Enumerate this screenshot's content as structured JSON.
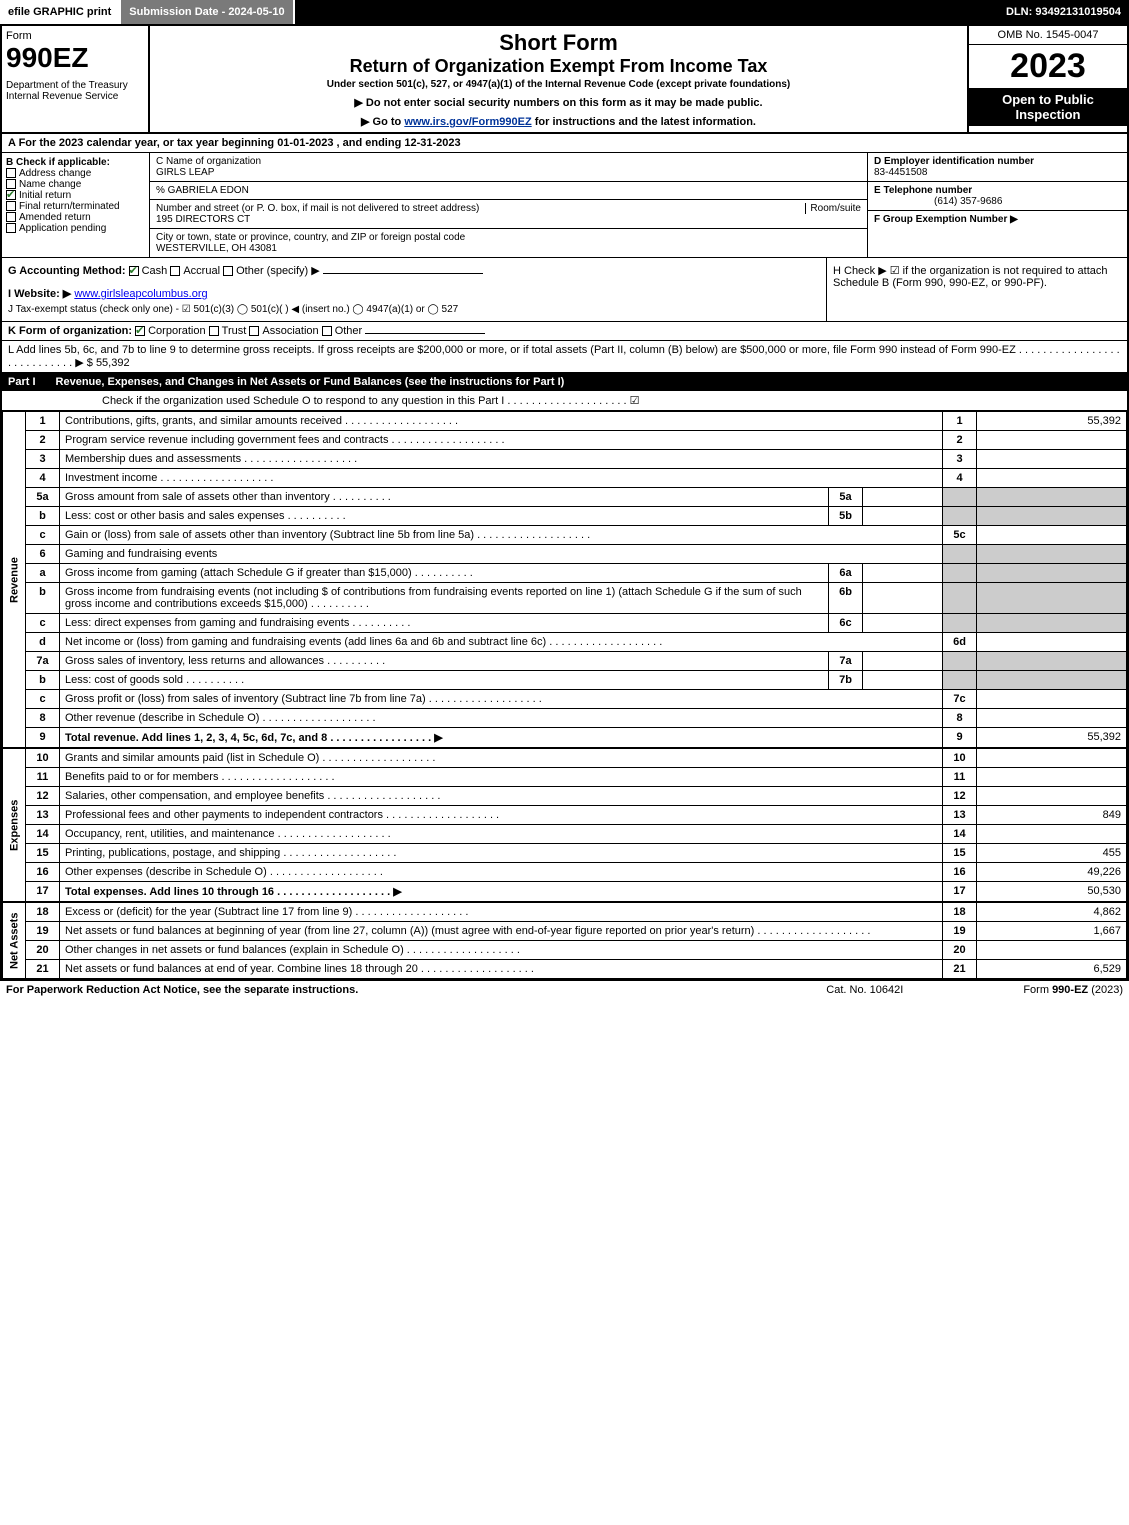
{
  "top": {
    "efile": "efile GRAPHIC print",
    "sub_date_label": "Submission Date - 2024-05-10",
    "dln": "DLN: 93492131019504"
  },
  "hdr": {
    "form": "Form",
    "num": "990EZ",
    "dept1": "Department of the Treasury",
    "dept2": "Internal Revenue Service",
    "title1": "Short Form",
    "title2": "Return of Organization Exempt From Income Tax",
    "sub": "Under section 501(c), 527, or 4947(a)(1) of the Internal Revenue Code (except private foundations)",
    "instr1": "▶ Do not enter social security numbers on this form as it may be made public.",
    "instr2_pre": "▶ Go to ",
    "instr2_link": "www.irs.gov/Form990EZ",
    "instr2_post": " for instructions and the latest information.",
    "omb": "OMB No. 1545-0047",
    "year": "2023",
    "open": "Open to Public Inspection"
  },
  "A": "A  For the 2023 calendar year, or tax year beginning 01-01-2023 , and ending 12-31-2023",
  "B": {
    "hdr": "B  Check if applicable:",
    "items": [
      "Address change",
      "Name change",
      "Initial return",
      "Final return/terminated",
      "Amended return",
      "Application pending"
    ],
    "checked_idx": 2
  },
  "C": {
    "name_lbl": "C Name of organization",
    "name": "GIRLS LEAP",
    "care": "% GABRIELA EDON",
    "street_lbl": "Number and street (or P. O. box, if mail is not delivered to street address)",
    "room_lbl": "Room/suite",
    "street": "195 DIRECTORS CT",
    "city_lbl": "City or town, state or province, country, and ZIP or foreign postal code",
    "city": "WESTERVILLE, OH  43081"
  },
  "D": {
    "lbl": "D Employer identification number",
    "val": "83-4451508"
  },
  "E": {
    "lbl": "E Telephone number",
    "val": "(614) 357-9686"
  },
  "F": {
    "lbl": "F Group Exemption Number   ▶"
  },
  "G": {
    "lbl": "G Accounting Method:",
    "opts": [
      "Cash",
      "Accrual",
      "Other (specify) ▶"
    ],
    "checked_idx": 0
  },
  "H": "H   Check ▶  ☑  if the organization is not required to attach Schedule B (Form 990, 990-EZ, or 990-PF).",
  "I": {
    "lbl": "I Website: ▶",
    "val": "www.girlsleapcolumbus.org"
  },
  "J": "J Tax-exempt status (check only one) -  ☑ 501(c)(3)  ◯ 501(c)(  ) ◀ (insert no.)  ◯ 4947(a)(1) or  ◯ 527",
  "K": {
    "lbl": "K Form of organization:",
    "opts": [
      "Corporation",
      "Trust",
      "Association",
      "Other"
    ],
    "checked_idx": 0
  },
  "L": {
    "text": "L Add lines 5b, 6c, and 7b to line 9 to determine gross receipts. If gross receipts are $200,000 or more, or if total assets (Part II, column (B) below) are $500,000 or more, file Form 990 instead of Form 990-EZ  . . . . . . . . . . . . . . . . . . . . . . . . . . . . ▶ $ ",
    "amt": "55,392"
  },
  "part1": {
    "title": "Part I",
    "desc": "Revenue, Expenses, and Changes in Net Assets or Fund Balances (see the instructions for Part I)",
    "check_line": "Check if the organization used Schedule O to respond to any question in this Part I . . . . . . . . . . . . . . . . . . . . ☑"
  },
  "sections": {
    "revenue": "Revenue",
    "expenses": "Expenses",
    "netassets": "Net Assets"
  },
  "rows": [
    {
      "n": "1",
      "d": "Contributions, gifts, grants, and similar amounts received",
      "r": "1",
      "a": "55,392"
    },
    {
      "n": "2",
      "d": "Program service revenue including government fees and contracts",
      "r": "2",
      "a": ""
    },
    {
      "n": "3",
      "d": "Membership dues and assessments",
      "r": "3",
      "a": ""
    },
    {
      "n": "4",
      "d": "Investment income",
      "r": "4",
      "a": ""
    },
    {
      "n": "5a",
      "d": "Gross amount from sale of assets other than inventory",
      "sn": "5a",
      "sa": "",
      "shade": true
    },
    {
      "n": "b",
      "d": "Less: cost or other basis and sales expenses",
      "sn": "5b",
      "sa": "",
      "shade": true
    },
    {
      "n": "c",
      "d": "Gain or (loss) from sale of assets other than inventory (Subtract line 5b from line 5a)",
      "r": "5c",
      "a": ""
    },
    {
      "n": "6",
      "d": "Gaming and fundraising events",
      "shade": true,
      "noright": true
    },
    {
      "n": "a",
      "d": "Gross income from gaming (attach Schedule G if greater than $15,000)",
      "sn": "6a",
      "sa": "",
      "shade": true
    },
    {
      "n": "b",
      "d": "Gross income from fundraising events (not including $                           of contributions from fundraising events reported on line 1) (attach Schedule G if the sum of such gross income and contributions exceeds $15,000)",
      "sn": "6b",
      "sa": "",
      "shade": true
    },
    {
      "n": "c",
      "d": "Less: direct expenses from gaming and fundraising events",
      "sn": "6c",
      "sa": "",
      "shade": true
    },
    {
      "n": "d",
      "d": "Net income or (loss) from gaming and fundraising events (add lines 6a and 6b and subtract line 6c)",
      "r": "6d",
      "a": ""
    },
    {
      "n": "7a",
      "d": "Gross sales of inventory, less returns and allowances",
      "sn": "7a",
      "sa": "",
      "shade": true
    },
    {
      "n": "b",
      "d": "Less: cost of goods sold",
      "sn": "7b",
      "sa": "",
      "shade": true
    },
    {
      "n": "c",
      "d": "Gross profit or (loss) from sales of inventory (Subtract line 7b from line 7a)",
      "r": "7c",
      "a": ""
    },
    {
      "n": "8",
      "d": "Other revenue (describe in Schedule O)",
      "r": "8",
      "a": ""
    },
    {
      "n": "9",
      "d": "Total revenue. Add lines 1, 2, 3, 4, 5c, 6d, 7c, and 8    . . . . . . . . . . . . . . . . . ▶",
      "r": "9",
      "a": "55,392",
      "bold": true
    }
  ],
  "exp_rows": [
    {
      "n": "10",
      "d": "Grants and similar amounts paid (list in Schedule O)",
      "r": "10",
      "a": ""
    },
    {
      "n": "11",
      "d": "Benefits paid to or for members",
      "r": "11",
      "a": ""
    },
    {
      "n": "12",
      "d": "Salaries, other compensation, and employee benefits",
      "r": "12",
      "a": ""
    },
    {
      "n": "13",
      "d": "Professional fees and other payments to independent contractors",
      "r": "13",
      "a": "849"
    },
    {
      "n": "14",
      "d": "Occupancy, rent, utilities, and maintenance",
      "r": "14",
      "a": ""
    },
    {
      "n": "15",
      "d": "Printing, publications, postage, and shipping",
      "r": "15",
      "a": "455"
    },
    {
      "n": "16",
      "d": "Other expenses (describe in Schedule O)",
      "r": "16",
      "a": "49,226"
    },
    {
      "n": "17",
      "d": "Total expenses. Add lines 10 through 16     . . . . . . . . . . . . . . . . . . . ▶",
      "r": "17",
      "a": "50,530",
      "bold": true
    }
  ],
  "na_rows": [
    {
      "n": "18",
      "d": "Excess or (deficit) for the year (Subtract line 17 from line 9)",
      "r": "18",
      "a": "4,862"
    },
    {
      "n": "19",
      "d": "Net assets or fund balances at beginning of year (from line 27, column (A)) (must agree with end-of-year figure reported on prior year's return)",
      "r": "19",
      "a": "1,667"
    },
    {
      "n": "20",
      "d": "Other changes in net assets or fund balances (explain in Schedule O)",
      "r": "20",
      "a": ""
    },
    {
      "n": "21",
      "d": "Net assets or fund balances at end of year. Combine lines 18 through 20",
      "r": "21",
      "a": "6,529"
    }
  ],
  "footer": {
    "l": "For Paperwork Reduction Act Notice, see the separate instructions.",
    "m": "Cat. No. 10642I",
    "r": "Form 990-EZ (2023)"
  }
}
